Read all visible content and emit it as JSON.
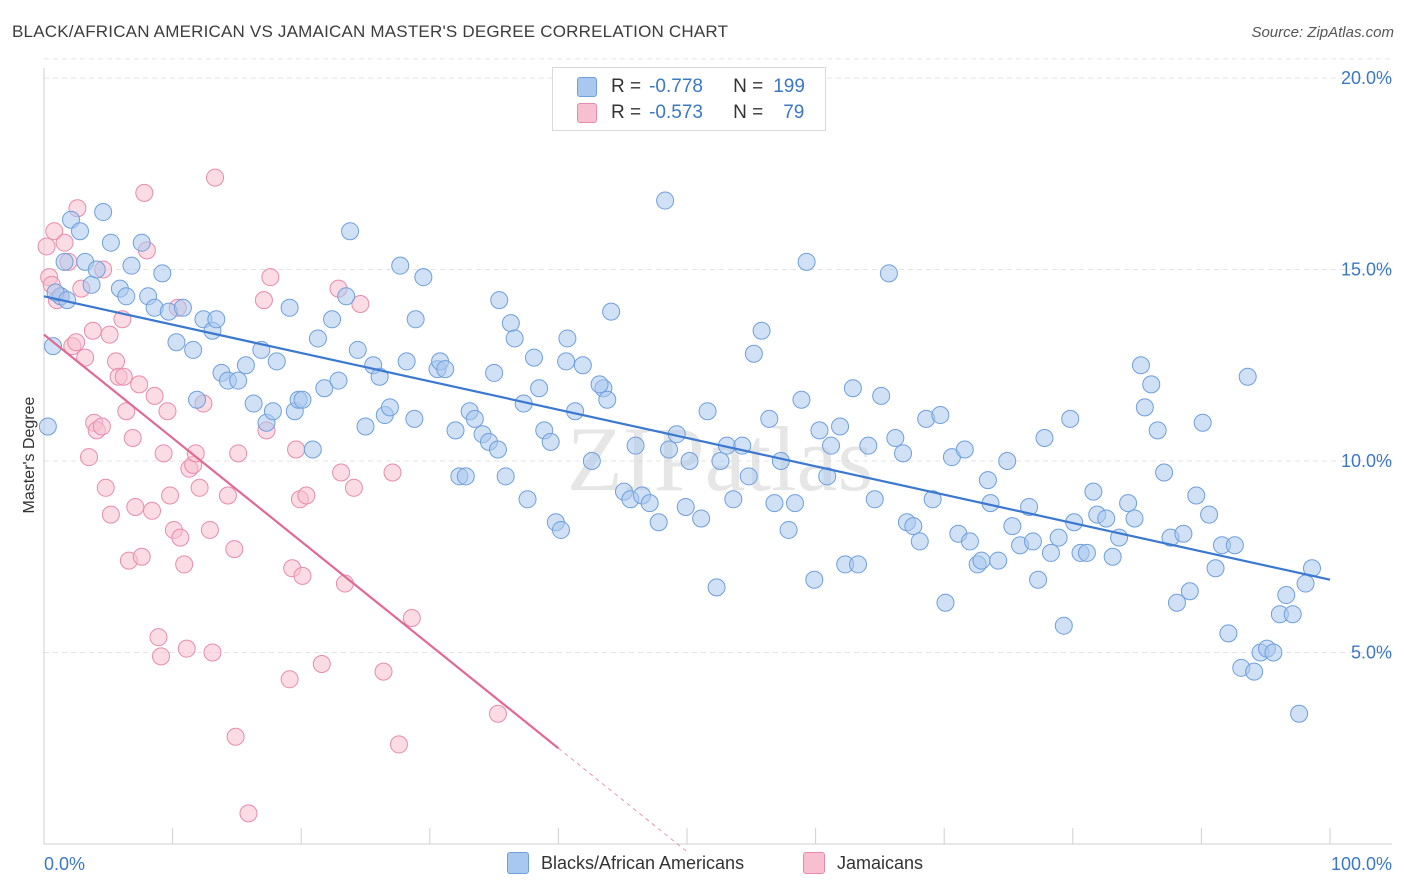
{
  "header": {
    "title": "BLACK/AFRICAN AMERICAN VS JAMAICAN MASTER'S DEGREE CORRELATION CHART",
    "source": "Source: ZipAtlas.com"
  },
  "watermark": "ZIPatlas",
  "legend_top": {
    "rows": [
      {
        "r_label": "R =",
        "r_value": "-0.778",
        "n_label": "N =",
        "n_value": "199"
      },
      {
        "r_label": "R =",
        "r_value": "-0.573",
        "n_label": "N =",
        "n_value": "79"
      }
    ]
  },
  "legend_bottom": {
    "items": [
      "Blacks/African Americans",
      "Jamaicans"
    ]
  },
  "colors": {
    "blue_fill": "#a9c8ef",
    "blue_stroke": "#6f9fdc",
    "blue_line": "#3b78d0",
    "pink_fill": "#f7bfd0",
    "pink_stroke": "#e98bab",
    "pink_line": "#e06a94",
    "axis_text": "#3b78c4",
    "grid": "#e3e3e3"
  },
  "chart_data": {
    "type": "scatter",
    "title": "BLACK/AFRICAN AMERICAN VS JAMAICAN MASTER'S DEGREE CORRELATION CHART",
    "xlabel": "",
    "ylabel": "Master's Degree",
    "xlim": [
      0,
      100
    ],
    "ylim": [
      0,
      20.5
    ],
    "x_tick_labels": [
      "0.0%",
      "100.0%"
    ],
    "y_ticks": [
      5,
      10,
      15,
      20
    ],
    "y_tick_labels": [
      "5.0%",
      "10.0%",
      "15.0%",
      "20.0%"
    ],
    "grid": true,
    "legend_position": "top-center",
    "series": [
      {
        "name": "Blacks/African Americans",
        "trend": {
          "x": [
            0,
            100
          ],
          "y": [
            14.3,
            6.9
          ]
        },
        "points": [
          [
            0.3,
            10.9
          ],
          [
            0.7,
            13.0
          ],
          [
            1.3,
            14.3
          ],
          [
            1.6,
            15.2
          ],
          [
            2.1,
            16.3
          ],
          [
            2.8,
            16.0
          ],
          [
            3.2,
            15.2
          ],
          [
            3.7,
            14.6
          ],
          [
            4.1,
            15.0
          ],
          [
            4.6,
            16.5
          ],
          [
            5.2,
            15.7
          ],
          [
            5.9,
            14.5
          ],
          [
            6.4,
            14.3
          ],
          [
            6.8,
            15.1
          ],
          [
            7.6,
            15.7
          ],
          [
            8.1,
            14.3
          ],
          [
            8.6,
            14.0
          ],
          [
            9.2,
            14.9
          ],
          [
            9.7,
            13.9
          ],
          [
            10.3,
            13.1
          ],
          [
            10.8,
            14.0
          ],
          [
            11.6,
            12.9
          ],
          [
            11.9,
            11.6
          ],
          [
            12.4,
            13.7
          ],
          [
            13.1,
            13.4
          ],
          [
            13.4,
            13.7
          ],
          [
            13.8,
            12.3
          ],
          [
            14.3,
            12.1
          ],
          [
            15.1,
            12.1
          ],
          [
            15.7,
            12.5
          ],
          [
            16.3,
            11.5
          ],
          [
            16.9,
            12.9
          ],
          [
            17.3,
            11.0
          ],
          [
            17.8,
            11.3
          ],
          [
            18.1,
            12.6
          ],
          [
            19.1,
            14.0
          ],
          [
            19.5,
            11.3
          ],
          [
            19.8,
            11.6
          ],
          [
            20.1,
            11.6
          ],
          [
            20.9,
            10.3
          ],
          [
            21.3,
            13.2
          ],
          [
            21.8,
            11.9
          ],
          [
            22.4,
            13.7
          ],
          [
            22.9,
            12.1
          ],
          [
            23.5,
            14.3
          ],
          [
            23.8,
            16.0
          ],
          [
            24.4,
            12.9
          ],
          [
            25.0,
            10.9
          ],
          [
            25.6,
            12.5
          ],
          [
            26.1,
            12.2
          ],
          [
            26.5,
            11.2
          ],
          [
            26.9,
            11.4
          ],
          [
            27.7,
            15.1
          ],
          [
            28.2,
            12.6
          ],
          [
            28.8,
            11.1
          ],
          [
            28.9,
            13.7
          ],
          [
            29.5,
            14.8
          ],
          [
            30.6,
            12.4
          ],
          [
            30.8,
            12.6
          ],
          [
            31.2,
            12.4
          ],
          [
            32.0,
            10.8
          ],
          [
            32.3,
            9.6
          ],
          [
            32.8,
            9.6
          ],
          [
            33.1,
            11.3
          ],
          [
            33.5,
            11.1
          ],
          [
            34.1,
            10.7
          ],
          [
            35.0,
            12.3
          ],
          [
            34.6,
            10.5
          ],
          [
            35.3,
            10.3
          ],
          [
            35.9,
            9.6
          ],
          [
            35.4,
            14.2
          ],
          [
            36.3,
            13.6
          ],
          [
            36.6,
            13.2
          ],
          [
            37.3,
            11.5
          ],
          [
            37.6,
            9.0
          ],
          [
            38.1,
            12.7
          ],
          [
            38.5,
            11.9
          ],
          [
            38.9,
            10.8
          ],
          [
            39.4,
            10.5
          ],
          [
            39.8,
            8.4
          ],
          [
            40.2,
            8.2
          ],
          [
            40.7,
            13.2
          ],
          [
            40.6,
            12.6
          ],
          [
            41.3,
            11.3
          ],
          [
            41.9,
            12.5
          ],
          [
            42.6,
            10.0
          ],
          [
            43.5,
            11.9
          ],
          [
            43.2,
            12.0
          ],
          [
            43.8,
            11.6
          ],
          [
            44.1,
            13.9
          ],
          [
            45.1,
            9.2
          ],
          [
            45.6,
            9.0
          ],
          [
            46.0,
            10.4
          ],
          [
            46.5,
            9.1
          ],
          [
            47.1,
            8.9
          ],
          [
            47.8,
            8.4
          ],
          [
            48.3,
            16.8
          ],
          [
            48.6,
            10.3
          ],
          [
            49.2,
            10.7
          ],
          [
            49.9,
            8.8
          ],
          [
            50.2,
            10.0
          ],
          [
            51.1,
            8.5
          ],
          [
            51.6,
            11.3
          ],
          [
            52.3,
            6.7
          ],
          [
            52.6,
            10.0
          ],
          [
            53.1,
            10.4
          ],
          [
            53.6,
            9.0
          ],
          [
            54.3,
            10.4
          ],
          [
            54.8,
            9.6
          ],
          [
            55.2,
            12.8
          ],
          [
            55.8,
            13.4
          ],
          [
            56.4,
            11.1
          ],
          [
            56.8,
            8.9
          ],
          [
            57.3,
            10.0
          ],
          [
            57.9,
            8.2
          ],
          [
            58.4,
            8.9
          ],
          [
            58.9,
            11.6
          ],
          [
            59.3,
            15.2
          ],
          [
            59.9,
            6.9
          ],
          [
            60.3,
            10.8
          ],
          [
            60.9,
            9.6
          ],
          [
            61.2,
            10.4
          ],
          [
            61.9,
            10.9
          ],
          [
            62.3,
            7.3
          ],
          [
            62.9,
            11.9
          ],
          [
            63.3,
            7.3
          ],
          [
            64.1,
            10.4
          ],
          [
            64.6,
            9.0
          ],
          [
            65.1,
            11.7
          ],
          [
            65.7,
            14.9
          ],
          [
            66.2,
            10.6
          ],
          [
            66.8,
            10.2
          ],
          [
            67.1,
            8.4
          ],
          [
            67.6,
            8.3
          ],
          [
            68.1,
            7.9
          ],
          [
            68.6,
            11.1
          ],
          [
            69.1,
            9.0
          ],
          [
            69.7,
            11.2
          ],
          [
            70.1,
            6.3
          ],
          [
            70.6,
            10.1
          ],
          [
            71.1,
            8.1
          ],
          [
            71.6,
            10.3
          ],
          [
            72.0,
            7.9
          ],
          [
            72.6,
            7.3
          ],
          [
            72.9,
            7.4
          ],
          [
            73.4,
            9.5
          ],
          [
            73.6,
            8.9
          ],
          [
            74.2,
            7.4
          ],
          [
            74.9,
            10.0
          ],
          [
            75.3,
            8.3
          ],
          [
            75.9,
            7.8
          ],
          [
            76.6,
            8.8
          ],
          [
            76.9,
            7.9
          ],
          [
            77.3,
            6.9
          ],
          [
            77.8,
            10.6
          ],
          [
            78.3,
            7.6
          ],
          [
            78.9,
            8.0
          ],
          [
            79.3,
            5.7
          ],
          [
            79.8,
            11.1
          ],
          [
            80.1,
            8.4
          ],
          [
            80.6,
            7.6
          ],
          [
            81.1,
            7.6
          ],
          [
            81.6,
            9.2
          ],
          [
            81.9,
            8.6
          ],
          [
            82.6,
            8.5
          ],
          [
            83.1,
            7.5
          ],
          [
            83.6,
            8.0
          ],
          [
            84.3,
            8.9
          ],
          [
            84.8,
            8.5
          ],
          [
            85.3,
            12.5
          ],
          [
            85.6,
            11.4
          ],
          [
            86.1,
            12.0
          ],
          [
            86.6,
            10.8
          ],
          [
            87.1,
            9.7
          ],
          [
            87.6,
            8.0
          ],
          [
            88.1,
            6.3
          ],
          [
            88.6,
            8.1
          ],
          [
            89.1,
            6.6
          ],
          [
            89.6,
            9.1
          ],
          [
            90.1,
            11.0
          ],
          [
            90.6,
            8.6
          ],
          [
            91.1,
            7.2
          ],
          [
            91.6,
            7.8
          ],
          [
            92.1,
            5.5
          ],
          [
            92.6,
            7.8
          ],
          [
            93.1,
            4.6
          ],
          [
            93.6,
            12.2
          ],
          [
            94.1,
            4.5
          ],
          [
            94.6,
            5.0
          ],
          [
            95.1,
            5.1
          ],
          [
            95.6,
            5.0
          ],
          [
            96.1,
            6.0
          ],
          [
            96.6,
            6.5
          ],
          [
            97.1,
            6.0
          ],
          [
            97.6,
            3.4
          ],
          [
            98.1,
            6.8
          ],
          [
            98.6,
            7.2
          ],
          [
            0.9,
            14.4
          ],
          [
            1.8,
            14.2
          ]
        ]
      },
      {
        "name": "Jamaicans",
        "trend": {
          "x": [
            0,
            40
          ],
          "y": [
            13.3,
            2.5
          ]
        },
        "trend_dashed": {
          "x": [
            40,
            50
          ],
          "y": [
            2.5,
            -0.2
          ]
        },
        "points": [
          [
            0.2,
            15.6
          ],
          [
            0.4,
            14.8
          ],
          [
            0.6,
            14.6
          ],
          [
            0.8,
            16.0
          ],
          [
            1.0,
            14.2
          ],
          [
            1.3,
            14.3
          ],
          [
            1.6,
            15.7
          ],
          [
            1.9,
            15.2
          ],
          [
            2.2,
            13.0
          ],
          [
            2.5,
            13.1
          ],
          [
            2.6,
            16.6
          ],
          [
            2.9,
            14.5
          ],
          [
            3.2,
            12.7
          ],
          [
            3.5,
            10.1
          ],
          [
            3.8,
            13.4
          ],
          [
            3.9,
            11.0
          ],
          [
            4.1,
            10.8
          ],
          [
            4.5,
            10.9
          ],
          [
            4.6,
            15.0
          ],
          [
            4.8,
            9.3
          ],
          [
            5.1,
            13.3
          ],
          [
            5.2,
            8.6
          ],
          [
            5.6,
            12.6
          ],
          [
            5.8,
            12.2
          ],
          [
            6.1,
            13.7
          ],
          [
            6.2,
            12.2
          ],
          [
            6.4,
            11.3
          ],
          [
            6.6,
            7.4
          ],
          [
            6.9,
            10.6
          ],
          [
            7.1,
            8.8
          ],
          [
            7.4,
            12.0
          ],
          [
            7.6,
            7.5
          ],
          [
            7.8,
            17.0
          ],
          [
            8.0,
            15.5
          ],
          [
            8.4,
            8.7
          ],
          [
            8.6,
            11.7
          ],
          [
            8.9,
            5.4
          ],
          [
            9.1,
            4.9
          ],
          [
            9.3,
            10.2
          ],
          [
            9.6,
            11.3
          ],
          [
            9.8,
            9.1
          ],
          [
            10.1,
            8.2
          ],
          [
            10.4,
            14.0
          ],
          [
            10.6,
            8.0
          ],
          [
            10.9,
            7.3
          ],
          [
            11.1,
            5.1
          ],
          [
            11.3,
            9.8
          ],
          [
            11.6,
            9.9
          ],
          [
            11.8,
            10.2
          ],
          [
            12.1,
            9.3
          ],
          [
            12.4,
            11.5
          ],
          [
            12.9,
            8.2
          ],
          [
            13.1,
            5.0
          ],
          [
            13.3,
            17.4
          ],
          [
            14.3,
            9.1
          ],
          [
            14.8,
            7.7
          ],
          [
            14.9,
            2.8
          ],
          [
            15.1,
            10.2
          ],
          [
            15.9,
            0.8
          ],
          [
            17.1,
            14.2
          ],
          [
            17.6,
            14.8
          ],
          [
            17.3,
            10.8
          ],
          [
            19.1,
            4.3
          ],
          [
            19.3,
            7.2
          ],
          [
            19.6,
            10.3
          ],
          [
            19.9,
            9.0
          ],
          [
            20.1,
            7.0
          ],
          [
            20.4,
            9.1
          ],
          [
            21.6,
            4.7
          ],
          [
            22.9,
            14.5
          ],
          [
            23.1,
            9.7
          ],
          [
            23.4,
            6.8
          ],
          [
            24.1,
            9.3
          ],
          [
            24.6,
            14.1
          ],
          [
            26.4,
            4.5
          ],
          [
            27.1,
            9.7
          ],
          [
            27.6,
            2.6
          ],
          [
            28.6,
            5.9
          ],
          [
            35.3,
            3.4
          ]
        ]
      }
    ]
  }
}
